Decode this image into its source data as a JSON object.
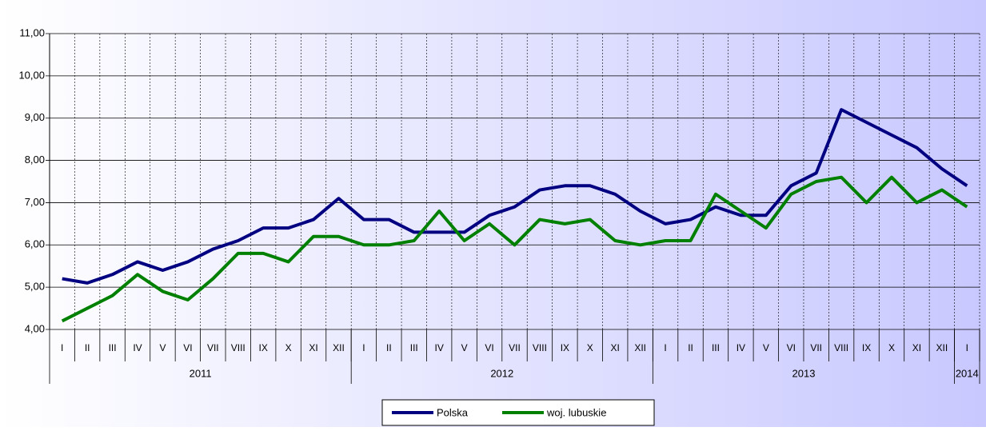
{
  "chart_data": {
    "type": "line",
    "categories": [
      "I",
      "II",
      "III",
      "IV",
      "V",
      "VI",
      "VII",
      "VIII",
      "IX",
      "X",
      "XI",
      "XII",
      "I",
      "II",
      "III",
      "IV",
      "V",
      "VI",
      "VII",
      "VIII",
      "IX",
      "X",
      "XI",
      "XII",
      "I",
      "II",
      "III",
      "IV",
      "V",
      "VI",
      "VII",
      "VIII",
      "IX",
      "X",
      "XI",
      "XII",
      "I"
    ],
    "year_groups": [
      {
        "label": "2011",
        "count": 12
      },
      {
        "label": "2012",
        "count": 12
      },
      {
        "label": "2013",
        "count": 12
      },
      {
        "label": "2014",
        "count": 1
      }
    ],
    "series": [
      {
        "name": "Polska",
        "color": "#000080",
        "values": [
          5.2,
          5.1,
          5.3,
          5.6,
          5.4,
          5.6,
          5.9,
          6.1,
          6.4,
          6.4,
          6.6,
          7.1,
          6.6,
          6.6,
          6.3,
          6.3,
          6.3,
          6.7,
          6.9,
          7.3,
          7.4,
          7.4,
          7.2,
          6.8,
          6.5,
          6.6,
          6.9,
          6.7,
          6.7,
          7.4,
          7.7,
          9.2,
          8.9,
          8.6,
          8.3,
          7.8,
          7.4
        ]
      },
      {
        "name": "woj. lubuskie",
        "color": "#008000",
        "values": [
          4.2,
          4.5,
          4.8,
          5.3,
          4.9,
          4.7,
          5.2,
          5.8,
          5.8,
          5.6,
          6.2,
          6.2,
          6.0,
          6.0,
          6.1,
          6.8,
          6.1,
          6.5,
          6.0,
          6.6,
          6.5,
          6.6,
          6.1,
          6.0,
          6.1,
          6.1,
          7.2,
          6.8,
          6.4,
          7.2,
          7.5,
          7.6,
          7.0,
          7.6,
          7.0,
          7.3,
          6.9
        ]
      }
    ],
    "ylim": [
      4,
      11
    ],
    "yticks": [
      {
        "value": 4,
        "label": "4,00"
      },
      {
        "value": 5,
        "label": "5,00"
      },
      {
        "value": 6,
        "label": "6,00"
      },
      {
        "value": 7,
        "label": "7,00"
      },
      {
        "value": 8,
        "label": "8,00"
      },
      {
        "value": 9,
        "label": "9,00"
      },
      {
        "value": 10,
        "label": "10,00"
      },
      {
        "value": 11,
        "label": "11,00"
      }
    ],
    "grid": true
  }
}
